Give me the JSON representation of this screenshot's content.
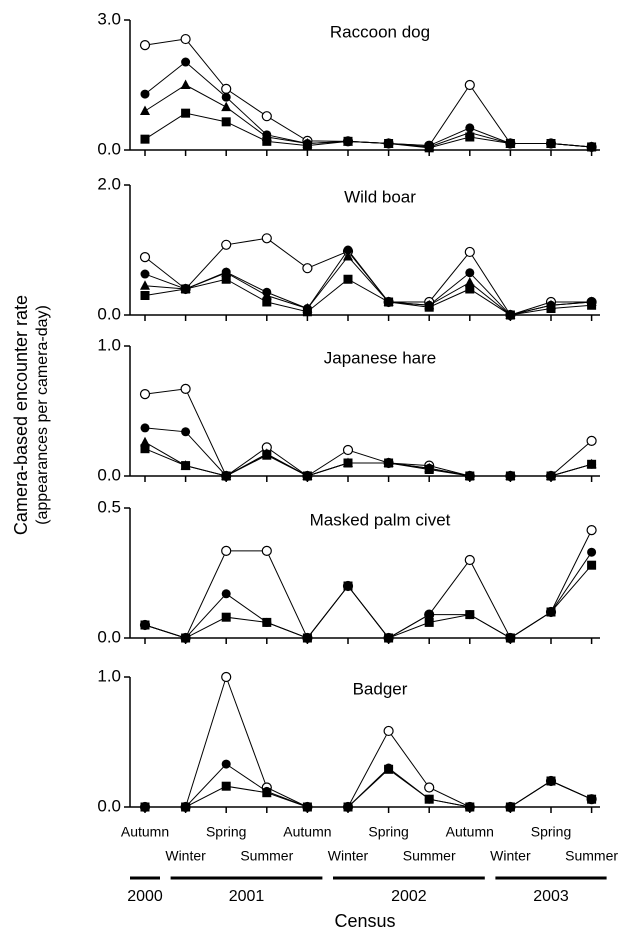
{
  "chart_data": [
    {
      "type": "line",
      "title": "Raccoon dog",
      "ylim": [
        0,
        3
      ],
      "yticks": [
        {
          "value": 0,
          "label": "0.0"
        },
        {
          "value": 3,
          "label": "3.0"
        }
      ],
      "series": [
        {
          "marker": "circle-open",
          "color": "#000000",
          "values": [
            2.42,
            2.56,
            1.41,
            0.78,
            0.21,
            0.2,
            0.15,
            0.1,
            1.5,
            0.15,
            0.15,
            0.07
          ]
        },
        {
          "marker": "circle",
          "color": "#000000",
          "values": [
            1.29,
            2.03,
            1.22,
            0.35,
            0.15,
            0.2,
            0.15,
            0.1,
            0.51,
            0.15,
            0.15,
            0.07
          ]
        },
        {
          "marker": "triangle",
          "color": "#000000",
          "values": [
            0.9,
            1.5,
            0.99,
            0.3,
            0.15,
            0.2,
            0.15,
            0.07,
            0.4,
            0.15,
            0.15,
            0.07
          ]
        },
        {
          "marker": "square",
          "color": "#000000",
          "values": [
            0.25,
            0.85,
            0.65,
            0.2,
            0.1,
            0.2,
            0.15,
            0.05,
            0.3,
            0.15,
            0.15,
            0.07
          ]
        }
      ]
    },
    {
      "type": "line",
      "title": "Wild boar",
      "ylim": [
        0,
        2
      ],
      "yticks": [
        {
          "value": 0,
          "label": "0.0"
        },
        {
          "value": 2,
          "label": "2.0"
        }
      ],
      "series": [
        {
          "marker": "circle-open",
          "color": "#000000",
          "values": [
            0.89,
            0.4,
            1.08,
            1.18,
            0.72,
            0.98,
            0.2,
            0.2,
            0.97,
            0,
            0.2,
            0.2
          ]
        },
        {
          "marker": "circle",
          "color": "#000000",
          "values": [
            0.63,
            0.4,
            0.66,
            0.35,
            0.1,
            1.0,
            0.2,
            0.15,
            0.65,
            0,
            0.15,
            0.2
          ]
        },
        {
          "marker": "triangle",
          "color": "#000000",
          "values": [
            0.45,
            0.4,
            0.65,
            0.3,
            0.1,
            0.9,
            0.2,
            0.15,
            0.5,
            0,
            0.15,
            0.2
          ]
        },
        {
          "marker": "square",
          "color": "#000000",
          "values": [
            0.3,
            0.4,
            0.55,
            0.2,
            0.05,
            0.55,
            0.2,
            0.12,
            0.4,
            0,
            0.1,
            0.15
          ]
        }
      ]
    },
    {
      "type": "line",
      "title": "Japanese hare",
      "ylim": [
        0,
        1
      ],
      "yticks": [
        {
          "value": 0,
          "label": "0.0"
        },
        {
          "value": 1,
          "label": "1.0"
        }
      ],
      "series": [
        {
          "marker": "circle-open",
          "color": "#000000",
          "values": [
            0.63,
            0.67,
            0,
            0.22,
            0,
            0.2,
            0.1,
            0.08,
            0,
            0,
            0,
            0.27
          ]
        },
        {
          "marker": "circle",
          "color": "#000000",
          "values": [
            0.37,
            0.34,
            0,
            0.17,
            0,
            0.1,
            0.1,
            0.06,
            0,
            0,
            0,
            0.09
          ]
        },
        {
          "marker": "triangle",
          "color": "#000000",
          "values": [
            0.26,
            0.08,
            0,
            0.17,
            0,
            0.1,
            0.1,
            0.06,
            0,
            0,
            0,
            0.09
          ]
        },
        {
          "marker": "square",
          "color": "#000000",
          "values": [
            0.21,
            0.08,
            0,
            0.16,
            0,
            0.1,
            0.1,
            0.05,
            0,
            0,
            0,
            0.09
          ]
        }
      ]
    },
    {
      "type": "line",
      "title": "Masked palm civet",
      "ylim": [
        0,
        0.5
      ],
      "yticks": [
        {
          "value": 0,
          "label": "0.0"
        },
        0.5
      ],
      "series": [
        {
          "marker": "circle-open",
          "color": "#000000",
          "values": [
            0.05,
            0,
            0.335,
            0.335,
            0,
            0.2,
            0,
            0.09,
            0.3,
            0,
            0.1,
            0.415
          ]
        },
        {
          "marker": "circle",
          "color": "#000000",
          "values": [
            0.05,
            0,
            0.17,
            0.06,
            0,
            0.2,
            0,
            0.09,
            0.09,
            0,
            0.1,
            0.33
          ]
        },
        {
          "marker": "square",
          "color": "#000000",
          "values": [
            0.05,
            0,
            0.08,
            0.06,
            0,
            0.2,
            0,
            0.06,
            0.09,
            0,
            0.1,
            0.28
          ]
        }
      ]
    },
    {
      "type": "line",
      "title": "Badger",
      "ylim": [
        0,
        1
      ],
      "yticks": [
        {
          "value": 0,
          "label": "0.0"
        },
        {
          "value": 1,
          "label": "1.0"
        }
      ],
      "series": [
        {
          "marker": "circle-open",
          "color": "#000000",
          "values": [
            0,
            0,
            1.0,
            0.15,
            0,
            0,
            0.585,
            0.15,
            0,
            0,
            0.2,
            0.06
          ]
        },
        {
          "marker": "circle",
          "color": "#000000",
          "values": [
            0,
            0,
            0.33,
            0.12,
            0,
            0,
            0.3,
            0.06,
            0,
            0,
            0.2,
            0.06
          ]
        },
        {
          "marker": "square",
          "color": "#000000",
          "values": [
            0,
            0,
            0.16,
            0.11,
            0,
            0,
            0.29,
            0.06,
            0,
            0,
            0.2,
            0.06
          ]
        }
      ]
    }
  ],
  "categories": [
    "Autumn",
    "Winter",
    "Spring",
    "Summer",
    "Autumn",
    "Winter",
    "Spring",
    "Summer",
    "Autumn",
    "Winter",
    "Spring",
    "Summer"
  ],
  "years": [
    {
      "label": "2000",
      "span": [
        0,
        0
      ]
    },
    {
      "label": "2001",
      "span": [
        1,
        4
      ]
    },
    {
      "label": "2002",
      "span": [
        5,
        8
      ]
    },
    {
      "label": "2003",
      "span": [
        9,
        11
      ]
    }
  ],
  "x_label": "Census",
  "y_label": [
    "Camera-based encounter rate",
    "(appearances per camera-day)"
  ]
}
